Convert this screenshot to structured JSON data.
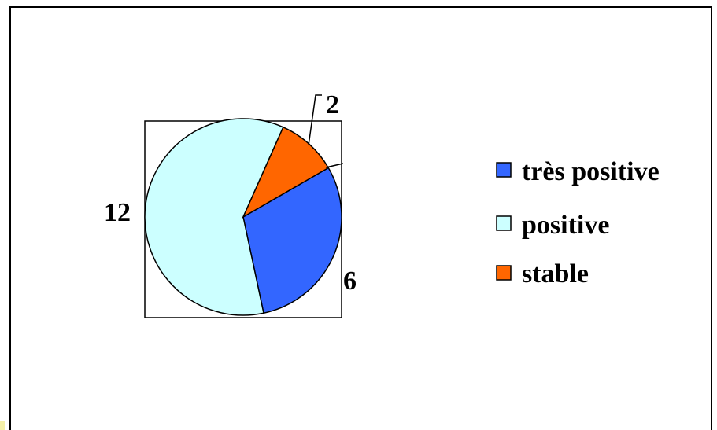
{
  "chart_data": {
    "type": "pie",
    "categories": [
      "très positive",
      "positive",
      "stable"
    ],
    "values": [
      6,
      12,
      2
    ],
    "colors": [
      "#3366ff",
      "#ccffff",
      "#ff6600"
    ],
    "data_labels": [
      "6",
      "12",
      "2"
    ],
    "legend": {
      "placement": "right",
      "entries": [
        "très positive",
        "positive",
        "stable"
      ]
    }
  }
}
